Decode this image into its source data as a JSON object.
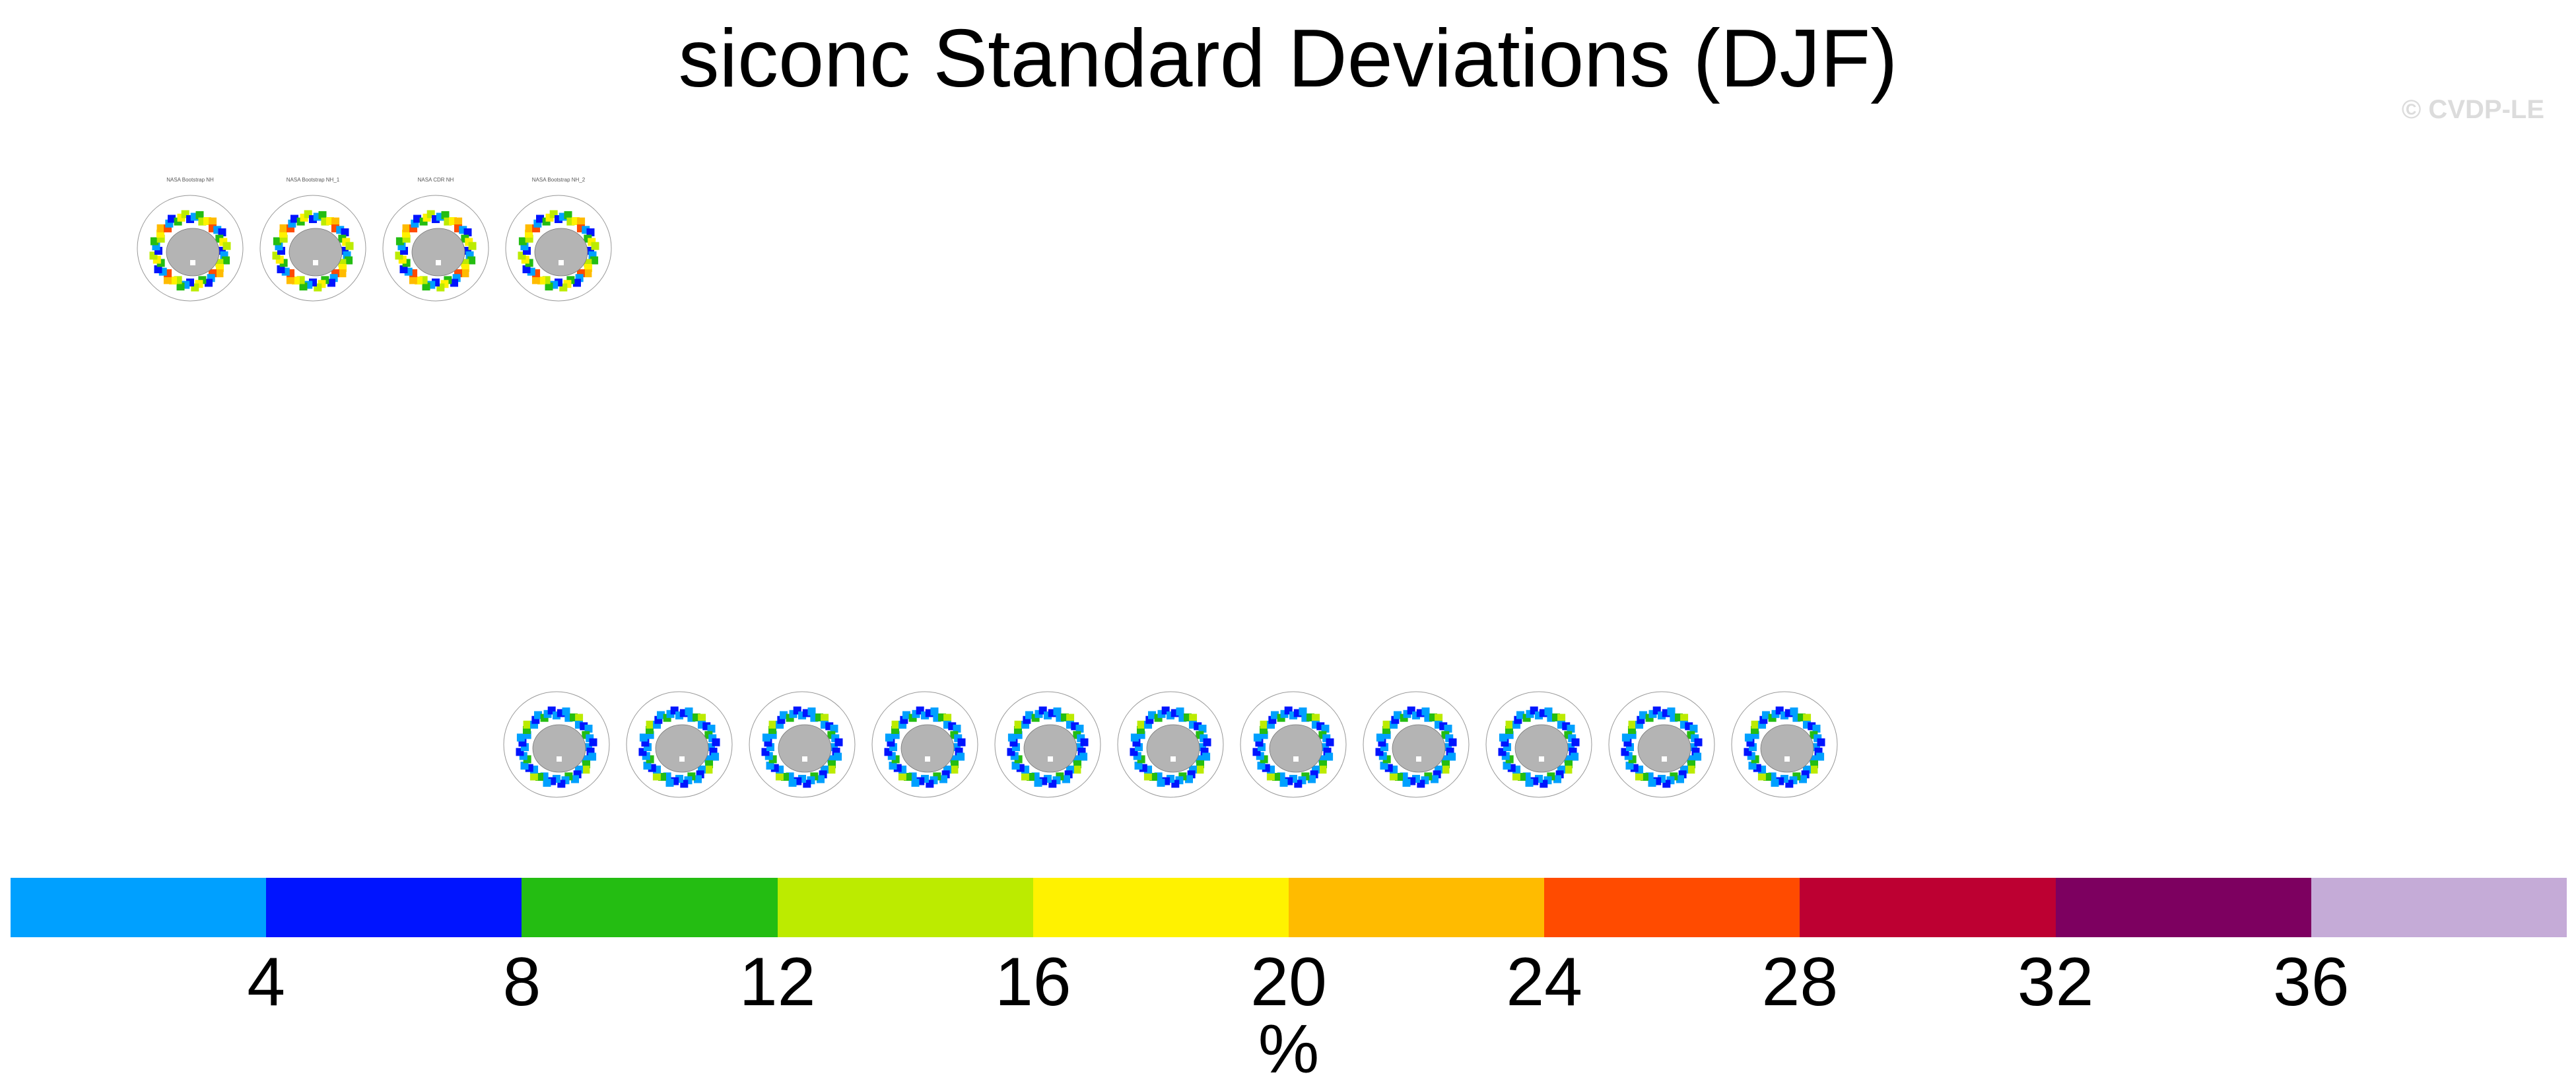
{
  "header": {
    "title": "siconc Standard Deviations (DJF)",
    "watermark": "© CVDP-LE"
  },
  "observation_panels": [
    {
      "title": "NASA Bootstrap NH"
    },
    {
      "title": "NASA Bootstrap NH_1"
    },
    {
      "title": "NASA CDR NH"
    },
    {
      "title": "NASA Bootstrap NH_2"
    }
  ],
  "model_panels": [
    {
      "title": ""
    },
    {
      "title": ""
    },
    {
      "title": ""
    },
    {
      "title": ""
    },
    {
      "title": ""
    },
    {
      "title": ""
    },
    {
      "title": ""
    },
    {
      "title": ""
    },
    {
      "title": ""
    },
    {
      "title": ""
    },
    {
      "title": ""
    }
  ],
  "colorbar": {
    "units": "%",
    "ticks": [
      "4",
      "8",
      "12",
      "16",
      "20",
      "24",
      "28",
      "32",
      "36"
    ],
    "colors": [
      "#00a0ff",
      "#0014ff",
      "#24bd12",
      "#bceb00",
      "#fff200",
      "#ffbb00",
      "#ff4b00",
      "#bd0032",
      "#7d0060",
      "#c5abd7"
    ]
  }
}
